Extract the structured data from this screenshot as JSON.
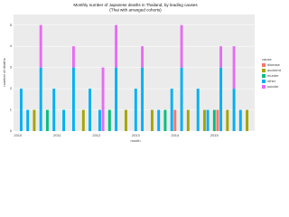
{
  "chart_data": {
    "type": "bar",
    "stacked": true,
    "title": "Monthly number of Japanese deaths in Thailand, by leading causes",
    "subtitle": "(Thai with arranged cohorts)",
    "x_label": "month",
    "y_label": "number of deaths",
    "legend_title": "cause",
    "categories": [
      "2010",
      null,
      null,
      null,
      null,
      null,
      null,
      null,
      null,
      null,
      null,
      null,
      "2011",
      null,
      null,
      null,
      null,
      null,
      null,
      null,
      null,
      null,
      null,
      null,
      "2012",
      null,
      null,
      null,
      null,
      null,
      null,
      null,
      null,
      null,
      null,
      null,
      "2013",
      null,
      null,
      null,
      null,
      null,
      null,
      null,
      null,
      null,
      null,
      null,
      "2014",
      null,
      null,
      null,
      null,
      null,
      null,
      null,
      null,
      null,
      null,
      null,
      "2015",
      null,
      null,
      null,
      null,
      null,
      null,
      null,
      null,
      null,
      null,
      null
    ],
    "ylim": [
      0,
      5.5
    ],
    "yticks": [
      0,
      1,
      2,
      3,
      4,
      5
    ],
    "grid": true,
    "legend": "right",
    "series": [
      {
        "name": "disease",
        "color": "#F8766D",
        "values": [
          0,
          0,
          0,
          0,
          0,
          0,
          0,
          0,
          0,
          0,
          0,
          0,
          0,
          0,
          0,
          0,
          0,
          0,
          0,
          0,
          0,
          0,
          0,
          0,
          0,
          0,
          0,
          0,
          0,
          0,
          0,
          0,
          0,
          0,
          0,
          0,
          0,
          0,
          0,
          0,
          0,
          0,
          0,
          0,
          0,
          0,
          0,
          0,
          1,
          0,
          0,
          0,
          0,
          0,
          0,
          0,
          0,
          0,
          0,
          0,
          0,
          1,
          0,
          0,
          0,
          0,
          0,
          0,
          0,
          0,
          0,
          0
        ]
      },
      {
        "name": "accident",
        "color": "#A3A500",
        "values": [
          0,
          0,
          0,
          0,
          0,
          1,
          0,
          0,
          0,
          0,
          0,
          0,
          0,
          0,
          0,
          0,
          0,
          0,
          0,
          0,
          1,
          0,
          0,
          0,
          0,
          0,
          0,
          0,
          0,
          0,
          0,
          0,
          0,
          1,
          0,
          0,
          0,
          0,
          0,
          0,
          0,
          1,
          0,
          0,
          0,
          0,
          0,
          0,
          0,
          0,
          0,
          0,
          1,
          0,
          0,
          0,
          0,
          1,
          0,
          0,
          0,
          0,
          0,
          0,
          1,
          0,
          0,
          0,
          0,
          0,
          1,
          0
        ]
      },
      {
        "name": "murder",
        "color": "#00BF7D",
        "values": [
          0,
          0,
          0,
          0,
          0,
          0,
          0,
          0,
          0,
          1,
          0,
          0,
          0,
          0,
          0,
          0,
          0,
          0,
          0,
          0,
          0,
          0,
          0,
          0,
          0,
          0,
          0,
          0,
          1,
          0,
          0,
          0,
          0,
          0,
          0,
          0,
          0,
          0,
          0,
          0,
          0,
          0,
          0,
          0,
          0,
          1,
          0,
          0,
          0,
          0,
          0,
          0,
          0,
          0,
          0,
          0,
          0,
          0,
          0,
          0,
          1,
          0,
          0,
          0,
          0,
          0,
          0,
          0,
          0,
          0,
          0,
          0
        ]
      },
      {
        "name": "other",
        "color": "#00B0F6",
        "values": [
          0,
          2,
          0,
          1,
          0,
          0,
          0,
          3,
          0,
          0,
          0,
          2,
          0,
          0,
          1,
          0,
          0,
          3,
          0,
          0,
          0,
          0,
          2,
          0,
          0,
          1,
          0,
          0,
          0,
          0,
          3,
          0,
          0,
          0,
          0,
          0,
          2,
          0,
          3,
          0,
          0,
          0,
          0,
          1,
          0,
          0,
          0,
          2,
          0,
          0,
          3,
          0,
          0,
          0,
          0,
          2,
          0,
          0,
          1,
          0,
          0,
          0,
          3,
          0,
          0,
          0,
          2,
          0,
          1,
          0,
          0,
          0
        ]
      },
      {
        "name": "suicide",
        "color": "#E76BF3",
        "values": [
          0,
          0,
          0,
          0,
          0,
          0,
          0,
          2,
          0,
          0,
          0,
          0,
          0,
          0,
          0,
          0,
          0,
          1,
          0,
          0,
          0,
          0,
          0,
          0,
          0,
          0,
          3,
          0,
          0,
          0,
          2,
          0,
          0,
          0,
          0,
          0,
          0,
          0,
          1,
          0,
          0,
          0,
          0,
          0,
          0,
          0,
          0,
          0,
          0,
          0,
          2,
          0,
          0,
          0,
          0,
          0,
          0,
          0,
          0,
          0,
          0,
          0,
          1,
          0,
          0,
          0,
          2,
          0,
          0,
          0,
          0,
          0
        ]
      }
    ]
  }
}
